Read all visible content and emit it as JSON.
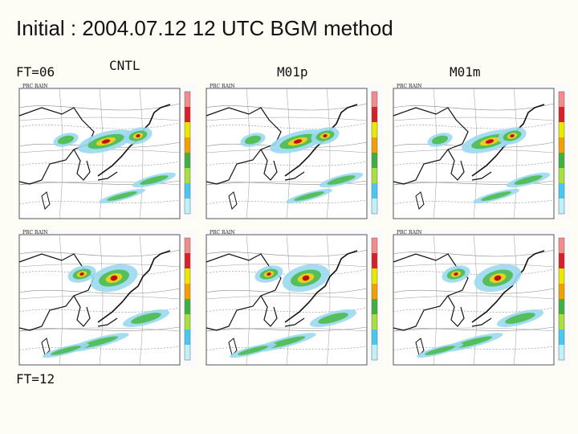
{
  "title": "Initial : 2004.07.12 12 UTC BGM method",
  "rows": [
    "FT=06",
    "FT=12"
  ],
  "columns": [
    "CNTL",
    "M01p",
    "M01m"
  ],
  "panel_header": "PRC  RAIN",
  "colors": {
    "background": "#fefdf5",
    "colorbar": [
      "#f28c8c",
      "#d8202a",
      "#e8e800",
      "#f0a000",
      "#40b040",
      "#a8e040",
      "#48c8f0",
      "#c0f0f8"
    ],
    "precip": [
      "#9ad8f0",
      "#3aa0d8",
      "#4cba4c",
      "#e8d020",
      "#e06020",
      "#c01010"
    ]
  }
}
